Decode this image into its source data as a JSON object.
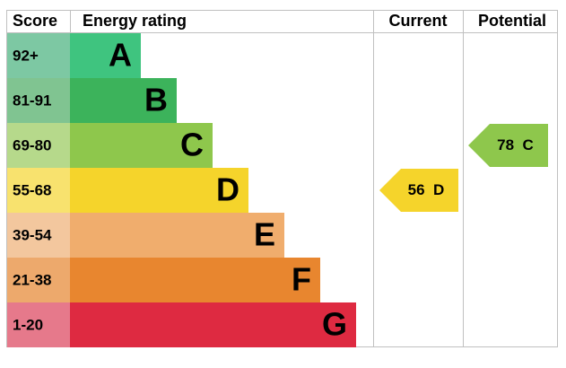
{
  "header": {
    "score": "Score",
    "rating": "Energy rating",
    "current": "Current",
    "potential": "Potential"
  },
  "bands": [
    {
      "score": "92+",
      "letter": "A",
      "color": "#3fc47f",
      "score_color": "#7dc8a3"
    },
    {
      "score": "81-91",
      "letter": "B",
      "color": "#3cb35b",
      "score_color": "#80c491"
    },
    {
      "score": "69-80",
      "letter": "C",
      "color": "#8ec74c",
      "score_color": "#b6d98b"
    },
    {
      "score": "55-68",
      "letter": "D",
      "color": "#f5d42b",
      "score_color": "#f8e26e"
    },
    {
      "score": "39-54",
      "letter": "E",
      "color": "#f0ad6d",
      "score_color": "#f3c79e"
    },
    {
      "score": "21-38",
      "letter": "F",
      "color": "#e8862f",
      "score_color": "#eda96c"
    },
    {
      "score": "1-20",
      "letter": "G",
      "color": "#de2a41",
      "score_color": "#e6798b"
    }
  ],
  "current": {
    "value": 56,
    "letter": "D"
  },
  "potential": {
    "value": 78,
    "letter": "C"
  }
}
